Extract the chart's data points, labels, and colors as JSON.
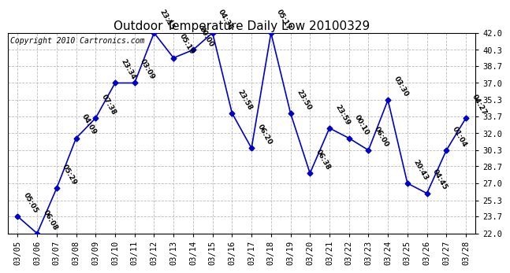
{
  "title": "Outdoor Temperature Daily Low 20100329",
  "copyright": "Copyright 2010 Cartronics.com",
  "x_labels": [
    "03/05",
    "03/06",
    "03/07",
    "03/08",
    "03/09",
    "03/10",
    "03/11",
    "03/12",
    "03/13",
    "03/14",
    "03/15",
    "03/16",
    "03/17",
    "03/18",
    "03/19",
    "03/20",
    "03/21",
    "03/22",
    "03/23",
    "03/24",
    "03/25",
    "03/26",
    "03/27",
    "03/28"
  ],
  "y_values": [
    23.7,
    22.0,
    26.5,
    31.5,
    33.5,
    37.0,
    37.0,
    42.0,
    39.5,
    40.3,
    42.0,
    34.0,
    30.5,
    42.0,
    34.0,
    28.0,
    32.5,
    31.5,
    30.3,
    35.3,
    27.0,
    26.0,
    30.3,
    33.5
  ],
  "point_labels": [
    "05:05",
    "06:08",
    "05:29",
    "04:09",
    "07:38",
    "23:34",
    "03:09",
    "23:15",
    "05:19",
    "00:00",
    "04:36",
    "23:58",
    "06:20",
    "05:17",
    "23:50",
    "06:38",
    "23:59",
    "00:10",
    "06:00",
    "03:30",
    "20:43",
    "04:45",
    "01:04",
    "04:27"
  ],
  "ylim": [
    22.0,
    42.0
  ],
  "yticks": [
    22.0,
    23.7,
    25.3,
    27.0,
    28.7,
    30.3,
    32.0,
    33.7,
    35.3,
    37.0,
    38.7,
    40.3,
    42.0
  ],
  "line_color": "#0000cc",
  "marker_color": "#0000cc",
  "bg_color": "#ffffff",
  "grid_color": "#bbbbbb",
  "title_fontsize": 11,
  "copyright_fontsize": 7,
  "label_fontsize": 6.5,
  "tick_fontsize": 7.5
}
